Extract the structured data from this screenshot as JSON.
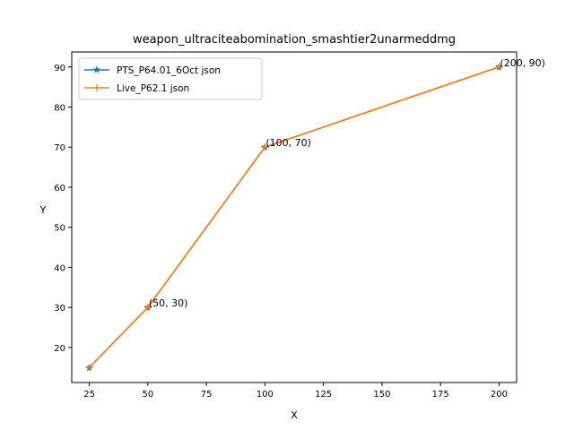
{
  "chart_data": {
    "type": "line",
    "title": "weapon_ultraciteabomination_smashtier2unarmeddmg",
    "xlabel": "X",
    "ylabel": "Y",
    "xlim": [
      17.5,
      207.5
    ],
    "ylim": [
      11.25,
      93.75
    ],
    "xticks": [
      25,
      50,
      75,
      100,
      125,
      150,
      175,
      200
    ],
    "yticks": [
      20,
      30,
      40,
      50,
      60,
      70,
      80,
      90
    ],
    "grid": false,
    "legend_position": "top-left",
    "series": [
      {
        "name": "PTS_P64.01_6Oct json",
        "color": "#1f77b4",
        "marker": "star",
        "x": [
          25,
          50,
          100,
          200
        ],
        "y": [
          15,
          30,
          70,
          90
        ]
      },
      {
        "name": "Live_P62.1 json",
        "color": "#ff7f0e",
        "marker": "plus",
        "x": [
          25,
          50,
          100,
          200
        ],
        "y": [
          15,
          30,
          70,
          90
        ]
      }
    ],
    "annotations": [
      {
        "text": "(50, 30)",
        "x": 50,
        "y": 30
      },
      {
        "text": "(100, 70)",
        "x": 100,
        "y": 70
      },
      {
        "text": "(200, 90)",
        "x": 200,
        "y": 90
      }
    ]
  }
}
